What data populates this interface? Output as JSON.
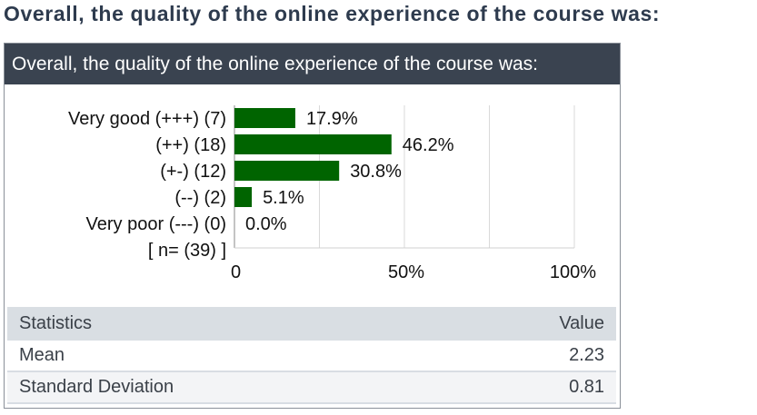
{
  "page": {
    "title": "Overall, the quality of the online experience of the course was:"
  },
  "panel": {
    "header": "Overall, the quality of the online experience of the course was:"
  },
  "chart_data": {
    "type": "bar",
    "orientation": "horizontal",
    "categories": [
      "Very good (+++) (7)",
      "(++) (18)",
      "(+-) (12)",
      "(--) (2)",
      "Very poor (---) (0)"
    ],
    "values": [
      17.9,
      46.2,
      30.8,
      5.1,
      0.0
    ],
    "value_labels": [
      "17.9%",
      "46.2%",
      "30.8%",
      "5.1%",
      "0.0%"
    ],
    "footer_label": "[ n= (39) ]",
    "xlim": [
      0,
      100
    ],
    "x_ticks": [
      0,
      50,
      100
    ],
    "x_tick_labels": [
      "0",
      "50%",
      "100%"
    ],
    "grid": true,
    "bar_color": "#006400"
  },
  "stats": {
    "header": {
      "label": "Statistics",
      "value": "Value"
    },
    "rows": [
      {
        "label": "Mean",
        "value": "2.23"
      },
      {
        "label": "Standard Deviation",
        "value": "0.81"
      }
    ]
  }
}
